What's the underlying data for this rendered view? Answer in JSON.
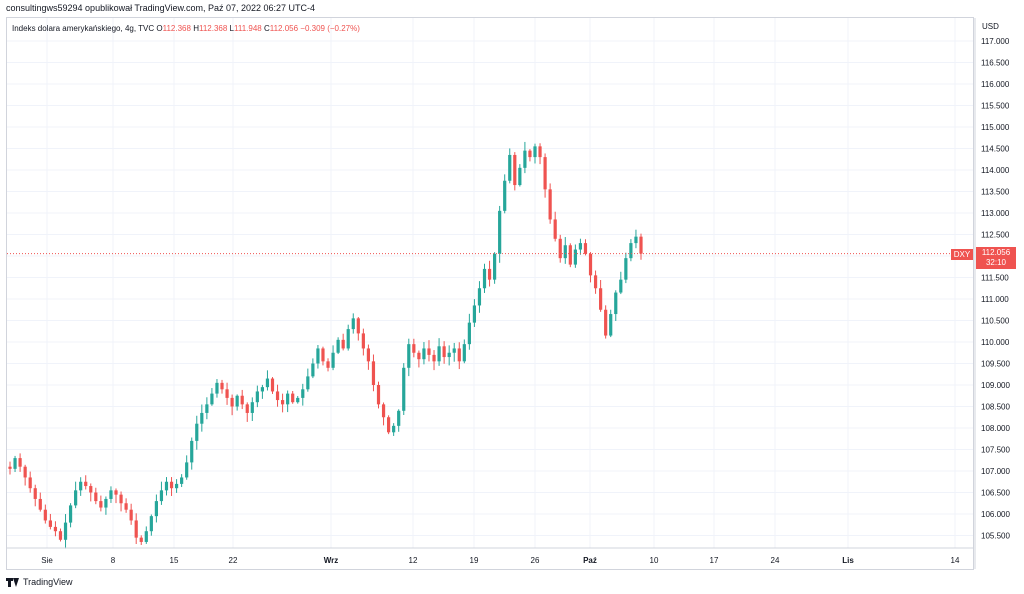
{
  "header": {
    "published_by": "consultingws59294 opublikował TradingView.com, Paź 07, 2022 06:27 UTC-4"
  },
  "legend": {
    "symbol": "Indeks dolara amerykańskiego, 4g, TVC",
    "open_label": "O",
    "open": "112.368",
    "high_label": "H",
    "high": "112.368",
    "low_label": "L",
    "low": "111.948",
    "close_label": "C",
    "close": "112.056",
    "change": "−0.309 (−0.27%)"
  },
  "axis": {
    "currency": "USD",
    "last_price": "112.056",
    "countdown": "32:10",
    "symbol_tag": "DXY"
  },
  "footer": {
    "brand": "TradingView"
  },
  "colors": {
    "up": "#26a69a",
    "down": "#ef5350",
    "grid": "#f0f3fa",
    "price_line": "#ef5350"
  },
  "chart_data": {
    "type": "candlestick",
    "title": "Indeks dolara amerykańskiego, 4g, TVC",
    "ylim": [
      105.2,
      117.2
    ],
    "y_ticks": [
      "117.000",
      "116.500",
      "116.000",
      "115.500",
      "115.000",
      "114.500",
      "114.000",
      "113.500",
      "113.000",
      "112.500",
      "112.000",
      "111.500",
      "111.000",
      "110.500",
      "110.000",
      "109.500",
      "109.000",
      "108.500",
      "108.000",
      "107.500",
      "107.000",
      "106.500",
      "106.000",
      "105.500"
    ],
    "x_ticks": [
      "Sie",
      "8",
      "15",
      "22",
      "Wrz",
      "12",
      "19",
      "26",
      "Paź",
      "10",
      "17",
      "24",
      "Lis",
      "14"
    ],
    "last_price": 112.056,
    "grid": true,
    "close_path": [
      107.05,
      107.3,
      107.1,
      106.85,
      106.6,
      106.35,
      106.1,
      105.85,
      105.7,
      105.6,
      105.4,
      105.8,
      106.2,
      106.55,
      106.75,
      106.65,
      106.5,
      106.3,
      106.15,
      106.35,
      106.55,
      106.45,
      106.25,
      106.1,
      105.85,
      105.45,
      105.35,
      105.6,
      105.95,
      106.3,
      106.55,
      106.75,
      106.6,
      106.7,
      106.85,
      107.2,
      107.7,
      108.1,
      108.35,
      108.55,
      108.8,
      109.05,
      108.9,
      108.7,
      108.5,
      108.75,
      108.55,
      108.35,
      108.6,
      108.85,
      108.95,
      109.15,
      108.85,
      108.65,
      108.55,
      108.8,
      108.6,
      108.7,
      108.9,
      109.2,
      109.5,
      109.85,
      109.55,
      109.4,
      109.75,
      110.05,
      109.85,
      110.3,
      110.55,
      110.2,
      109.85,
      109.55,
      109.0,
      108.55,
      108.25,
      107.9,
      108.05,
      108.4,
      109.4,
      109.95,
      109.75,
      109.6,
      109.85,
      109.7,
      109.55,
      109.9,
      109.65,
      109.75,
      109.85,
      109.55,
      109.95,
      110.45,
      110.85,
      111.25,
      111.7,
      111.45,
      112.05,
      113.05,
      113.75,
      114.35,
      113.65,
      114.05,
      114.45,
      114.3,
      114.55,
      114.3,
      113.55,
      112.85,
      112.4,
      111.95,
      112.25,
      111.8,
      112.15,
      112.3,
      112.05,
      111.55,
      111.25,
      110.75,
      110.15,
      110.65,
      111.15,
      111.45,
      111.95,
      112.3,
      112.45,
      112.056
    ]
  }
}
